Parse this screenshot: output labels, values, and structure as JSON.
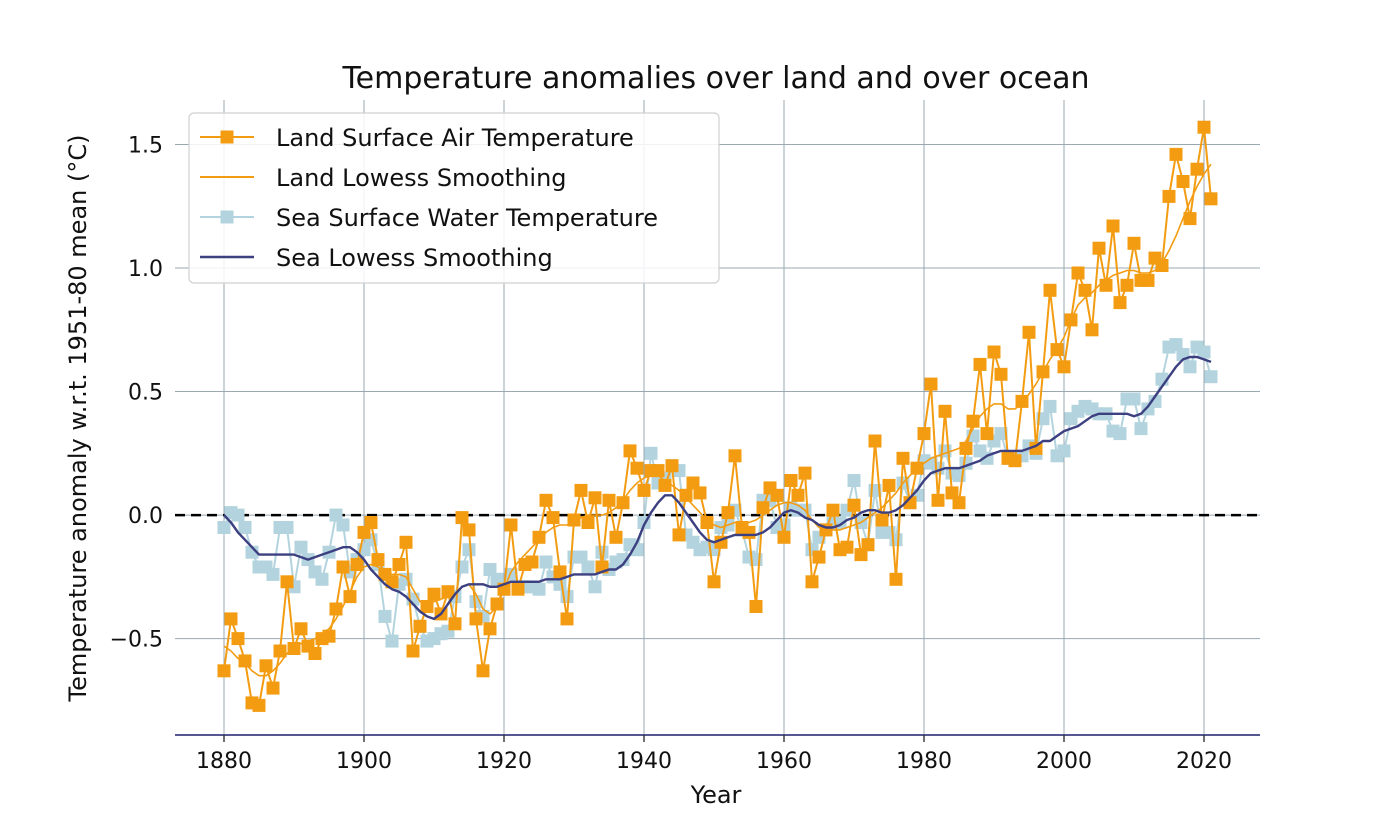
{
  "chart_data": {
    "type": "line",
    "title": "Temperature anomalies over land and over ocean",
    "xlabel": "Year",
    "ylabel": "Temperature anomaly w.r.t. 1951-80 mean (°C)",
    "xlim": [
      1873,
      2028
    ],
    "ylim": [
      -0.89,
      1.68
    ],
    "xticks": [
      1880,
      1900,
      1920,
      1940,
      1960,
      1980,
      2000,
      2020
    ],
    "xtick_labels": [
      "1880",
      "1900",
      "1920",
      "1940",
      "1960",
      "1980",
      "2000",
      "2020"
    ],
    "yticks": [
      -0.5,
      0.0,
      0.5,
      1.0,
      1.5
    ],
    "ytick_labels": [
      "−0.5",
      "0.0",
      "0.5",
      "1.0",
      "1.5"
    ],
    "grid": true,
    "reference_line": {
      "y": 0.0,
      "style": "dashed",
      "color": "#000000"
    },
    "legend_position": "top-left",
    "colors": {
      "land": "#f39c12",
      "land_smooth": "#f39c12",
      "sea": "#b3d4de",
      "sea_smooth": "#3c3f80",
      "grid": "#9aa8b2",
      "axis": "#3c3f80"
    },
    "x": [
      1880,
      1881,
      1882,
      1883,
      1884,
      1885,
      1886,
      1887,
      1888,
      1889,
      1890,
      1891,
      1892,
      1893,
      1894,
      1895,
      1896,
      1897,
      1898,
      1899,
      1900,
      1901,
      1902,
      1903,
      1904,
      1905,
      1906,
      1907,
      1908,
      1909,
      1910,
      1911,
      1912,
      1913,
      1914,
      1915,
      1916,
      1917,
      1918,
      1919,
      1920,
      1921,
      1922,
      1923,
      1924,
      1925,
      1926,
      1927,
      1928,
      1929,
      1930,
      1931,
      1932,
      1933,
      1934,
      1935,
      1936,
      1937,
      1938,
      1939,
      1940,
      1941,
      1942,
      1943,
      1944,
      1945,
      1946,
      1947,
      1948,
      1949,
      1950,
      1951,
      1952,
      1953,
      1954,
      1955,
      1956,
      1957,
      1958,
      1959,
      1960,
      1961,
      1962,
      1963,
      1964,
      1965,
      1966,
      1967,
      1968,
      1969,
      1970,
      1971,
      1972,
      1973,
      1974,
      1975,
      1976,
      1977,
      1978,
      1979,
      1980,
      1981,
      1982,
      1983,
      1984,
      1985,
      1986,
      1987,
      1988,
      1989,
      1990,
      1991,
      1992,
      1993,
      1994,
      1995,
      1996,
      1997,
      1998,
      1999,
      2000,
      2001,
      2002,
      2003,
      2004,
      2005,
      2006,
      2007,
      2008,
      2009,
      2010,
      2011,
      2012,
      2013,
      2014,
      2015,
      2016,
      2017,
      2018,
      2019,
      2020,
      2021
    ],
    "series": [
      {
        "name": "Land Surface Air Temperature",
        "style": "line-square-markers",
        "values": [
          -0.63,
          -0.42,
          -0.5,
          -0.59,
          -0.76,
          -0.77,
          -0.61,
          -0.7,
          -0.55,
          -0.27,
          -0.54,
          -0.46,
          -0.53,
          -0.56,
          -0.5,
          -0.49,
          -0.38,
          -0.21,
          -0.33,
          -0.2,
          -0.07,
          -0.03,
          -0.18,
          -0.24,
          -0.27,
          -0.2,
          -0.11,
          -0.55,
          -0.45,
          -0.37,
          -0.32,
          -0.4,
          -0.31,
          -0.44,
          -0.01,
          -0.06,
          -0.42,
          -0.63,
          -0.46,
          -0.36,
          -0.3,
          -0.04,
          -0.3,
          -0.2,
          -0.19,
          -0.09,
          0.06,
          -0.01,
          -0.23,
          -0.42,
          -0.02,
          0.1,
          -0.03,
          0.07,
          -0.21,
          0.06,
          -0.09,
          0.05,
          0.26,
          0.19,
          0.1,
          0.18,
          0.18,
          0.12,
          0.2,
          -0.08,
          0.08,
          0.13,
          0.09,
          -0.03,
          -0.27,
          -0.11,
          0.01,
          0.24,
          -0.05,
          -0.07,
          -0.37,
          0.03,
          0.11,
          0.08,
          -0.09,
          0.14,
          0.08,
          0.17,
          -0.27,
          -0.17,
          -0.06,
          0.02,
          -0.14,
          -0.13,
          0.04,
          -0.16,
          -0.12,
          0.3,
          -0.02,
          0.12,
          -0.26,
          0.23,
          0.05,
          0.19,
          0.33,
          0.53,
          0.06,
          0.42,
          0.09,
          0.05,
          0.27,
          0.38,
          0.61,
          0.33,
          0.66,
          0.57,
          0.23,
          0.22,
          0.46,
          0.74,
          0.27,
          0.58,
          0.91,
          0.67,
          0.6,
          0.79,
          0.98,
          0.91,
          0.75,
          1.08,
          0.93,
          1.17,
          0.86,
          0.93,
          1.1,
          0.95,
          0.95,
          1.04,
          1.01,
          1.29,
          1.46,
          1.35,
          1.2,
          1.4,
          1.57,
          1.28
        ]
      },
      {
        "name": "Land Lowess Smoothing",
        "style": "line",
        "values": [
          -0.53,
          -0.55,
          -0.58,
          -0.6,
          -0.63,
          -0.65,
          -0.65,
          -0.63,
          -0.6,
          -0.56,
          -0.53,
          -0.52,
          -0.51,
          -0.5,
          -0.48,
          -0.46,
          -0.42,
          -0.37,
          -0.31,
          -0.25,
          -0.21,
          -0.2,
          -0.21,
          -0.23,
          -0.24,
          -0.24,
          -0.25,
          -0.3,
          -0.35,
          -0.36,
          -0.35,
          -0.34,
          -0.33,
          -0.32,
          -0.29,
          -0.28,
          -0.32,
          -0.38,
          -0.4,
          -0.37,
          -0.3,
          -0.23,
          -0.19,
          -0.16,
          -0.13,
          -0.1,
          -0.07,
          -0.05,
          -0.04,
          -0.04,
          -0.03,
          -0.01,
          0.0,
          0.0,
          0.0,
          0.01,
          0.03,
          0.06,
          0.1,
          0.13,
          0.15,
          0.16,
          0.16,
          0.14,
          0.12,
          0.1,
          0.07,
          0.04,
          0.01,
          -0.02,
          -0.04,
          -0.05,
          -0.04,
          -0.03,
          -0.03,
          -0.03,
          -0.02,
          0.0,
          0.02,
          0.04,
          0.05,
          0.05,
          0.04,
          0.02,
          -0.02,
          -0.05,
          -0.06,
          -0.06,
          -0.06,
          -0.05,
          -0.04,
          -0.03,
          -0.01,
          0.01,
          0.03,
          0.06,
          0.09,
          0.13,
          0.16,
          0.19,
          0.21,
          0.23,
          0.24,
          0.25,
          0.26,
          0.27,
          0.3,
          0.35,
          0.4,
          0.43,
          0.45,
          0.45,
          0.43,
          0.43,
          0.45,
          0.49,
          0.53,
          0.58,
          0.63,
          0.67,
          0.72,
          0.79,
          0.85,
          0.88,
          0.9,
          0.93,
          0.95,
          0.97,
          0.98,
          0.99,
          0.99,
          0.98,
          0.98,
          0.99,
          1.02,
          1.07,
          1.13,
          1.2,
          1.27,
          1.33,
          1.38,
          1.42
        ]
      },
      {
        "name": "Sea Surface Water Temperature",
        "style": "line-square-markers",
        "values": [
          -0.05,
          0.01,
          0.0,
          -0.05,
          -0.15,
          -0.21,
          -0.21,
          -0.24,
          -0.05,
          -0.05,
          -0.29,
          -0.13,
          -0.18,
          -0.23,
          -0.26,
          -0.15,
          0.0,
          -0.04,
          -0.23,
          -0.18,
          -0.14,
          -0.1,
          -0.2,
          -0.41,
          -0.51,
          -0.28,
          -0.26,
          -0.34,
          -0.45,
          -0.51,
          -0.5,
          -0.48,
          -0.47,
          -0.33,
          -0.21,
          -0.14,
          -0.35,
          -0.41,
          -0.22,
          -0.26,
          -0.3,
          -0.24,
          -0.29,
          -0.29,
          -0.29,
          -0.3,
          -0.19,
          -0.25,
          -0.28,
          -0.33,
          -0.17,
          -0.17,
          -0.21,
          -0.29,
          -0.15,
          -0.22,
          -0.19,
          -0.18,
          -0.12,
          -0.14,
          -0.03,
          0.25,
          0.13,
          0.15,
          0.2,
          0.18,
          -0.08,
          -0.11,
          -0.14,
          -0.13,
          -0.14,
          -0.05,
          -0.04,
          0.02,
          -0.06,
          -0.17,
          -0.18,
          0.06,
          0.06,
          -0.05,
          -0.04,
          0.03,
          0.02,
          0.02,
          -0.14,
          -0.09,
          -0.06,
          -0.02,
          -0.03,
          0.02,
          0.14,
          -0.03,
          -0.12,
          0.1,
          -0.07,
          -0.07,
          -0.1,
          0.13,
          0.05,
          0.08,
          0.22,
          0.21,
          0.19,
          0.26,
          0.17,
          0.16,
          0.21,
          0.32,
          0.26,
          0.23,
          0.3,
          0.33,
          0.23,
          0.23,
          0.24,
          0.28,
          0.25,
          0.39,
          0.44,
          0.24,
          0.26,
          0.39,
          0.42,
          0.44,
          0.43,
          0.41,
          0.41,
          0.34,
          0.33,
          0.47,
          0.47,
          0.35,
          0.43,
          0.46,
          0.55,
          0.68,
          0.69,
          0.65,
          0.6,
          0.68,
          0.66,
          0.56
        ]
      },
      {
        "name": "Sea Lowess Smoothing",
        "style": "line",
        "values": [
          0.0,
          -0.03,
          -0.07,
          -0.1,
          -0.13,
          -0.16,
          -0.16,
          -0.16,
          -0.16,
          -0.16,
          -0.16,
          -0.17,
          -0.18,
          -0.17,
          -0.16,
          -0.15,
          -0.14,
          -0.13,
          -0.13,
          -0.15,
          -0.18,
          -0.22,
          -0.25,
          -0.28,
          -0.3,
          -0.31,
          -0.33,
          -0.36,
          -0.39,
          -0.41,
          -0.42,
          -0.4,
          -0.36,
          -0.32,
          -0.29,
          -0.28,
          -0.28,
          -0.28,
          -0.29,
          -0.29,
          -0.28,
          -0.27,
          -0.27,
          -0.27,
          -0.27,
          -0.27,
          -0.26,
          -0.26,
          -0.26,
          -0.25,
          -0.24,
          -0.24,
          -0.24,
          -0.24,
          -0.23,
          -0.22,
          -0.22,
          -0.2,
          -0.16,
          -0.11,
          -0.04,
          0.01,
          0.05,
          0.08,
          0.08,
          0.05,
          0.01,
          -0.03,
          -0.07,
          -0.1,
          -0.11,
          -0.1,
          -0.09,
          -0.08,
          -0.08,
          -0.08,
          -0.08,
          -0.07,
          -0.05,
          -0.02,
          0.01,
          0.02,
          0.01,
          -0.01,
          -0.02,
          -0.04,
          -0.05,
          -0.05,
          -0.04,
          -0.02,
          -0.01,
          0.01,
          0.02,
          0.02,
          0.01,
          0.01,
          0.02,
          0.04,
          0.07,
          0.1,
          0.14,
          0.17,
          0.18,
          0.19,
          0.19,
          0.19,
          0.2,
          0.21,
          0.22,
          0.24,
          0.25,
          0.26,
          0.26,
          0.26,
          0.26,
          0.27,
          0.28,
          0.3,
          0.3,
          0.32,
          0.34,
          0.35,
          0.36,
          0.38,
          0.4,
          0.41,
          0.41,
          0.41,
          0.41,
          0.41,
          0.4,
          0.41,
          0.44,
          0.48,
          0.52,
          0.56,
          0.6,
          0.63,
          0.64,
          0.64,
          0.63,
          0.62
        ]
      }
    ]
  }
}
